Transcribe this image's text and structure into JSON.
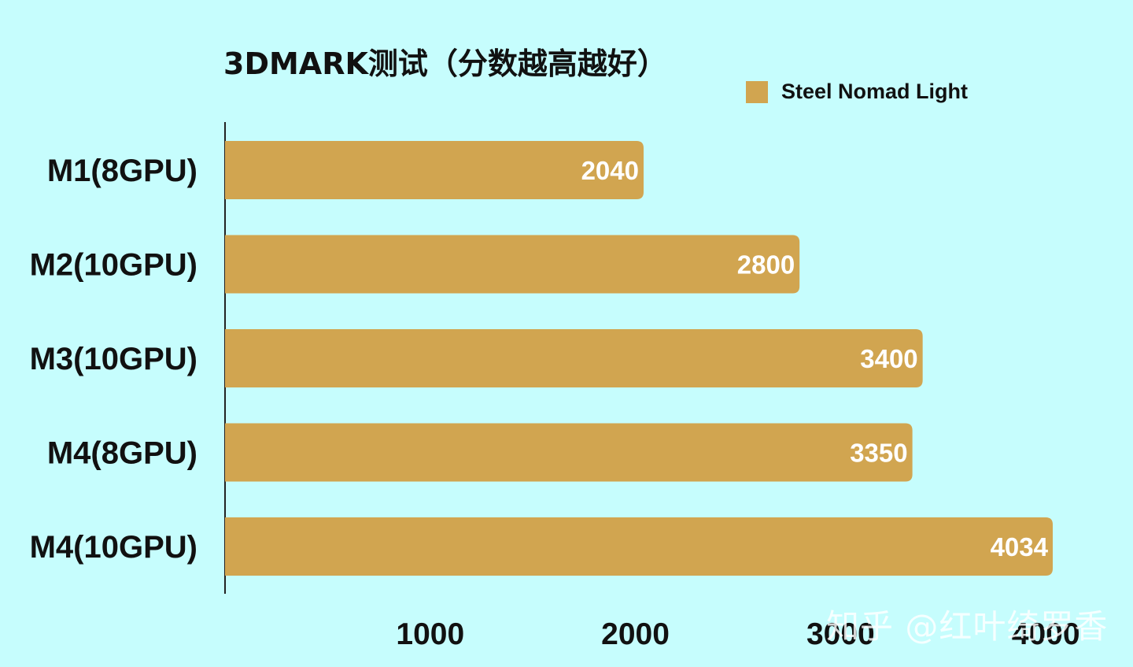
{
  "chart_data": {
    "type": "bar",
    "orientation": "horizontal",
    "title": "3DMARK测试（分数越高越好）",
    "categories": [
      "M1(8GPU)",
      "M2(10GPU)",
      "M3(10GPU)",
      "M4(8GPU)",
      "M4(10GPU)"
    ],
    "series": [
      {
        "name": "Steel Nomad Light",
        "values": [
          2040,
          2800,
          3400,
          3350,
          4034
        ],
        "color": "#d1a550"
      }
    ],
    "xticks": [
      1000,
      2000,
      3000,
      4000
    ],
    "xlim": [
      0,
      4034
    ],
    "grid": false,
    "legend_position": "top-right",
    "xlabel": "",
    "ylabel": ""
  },
  "watermark": "知乎 @红叶绮罗香",
  "colors": {
    "background": "#c6fdfd",
    "bar": "#d1a550",
    "axis": "#222222",
    "text": "#111111",
    "bar_label": "#ffffff"
  }
}
